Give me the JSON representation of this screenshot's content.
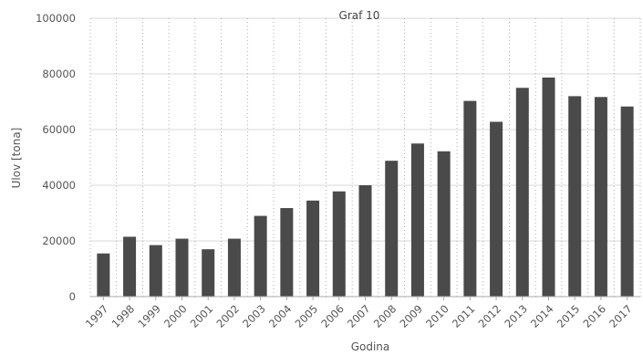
{
  "chart_data": {
    "type": "bar",
    "title": "Graf 10",
    "xlabel": "Godina",
    "ylabel": "Ulov [tona]",
    "categories": [
      "1997",
      "1998",
      "1999",
      "2000",
      "2001",
      "2002",
      "2003",
      "2004",
      "2005",
      "2006",
      "2007",
      "2008",
      "2009",
      "2010",
      "2011",
      "2012",
      "2013",
      "2014",
      "2015",
      "2016",
      "2017"
    ],
    "series": [
      {
        "values": [
          15500,
          21500,
          18500,
          20800,
          17000,
          20800,
          29000,
          31800,
          34500,
          37800,
          40000,
          48800,
          55000,
          52200,
          70300,
          62800,
          75000,
          78700,
          72000,
          71700,
          68300
        ]
      }
    ],
    "ylim": [
      0,
      100000
    ],
    "yticks": [
      0,
      20000,
      40000,
      60000,
      80000,
      100000
    ],
    "ytick_labels": [
      "0",
      "20000",
      "40000",
      "60000",
      "80000",
      "100000"
    ],
    "grid": true,
    "legend": "none",
    "colors": {
      "bar": "#4a4a4a",
      "grid": "#d9d9d9",
      "axis": "#aaaaaa",
      "text": "#555555"
    }
  }
}
